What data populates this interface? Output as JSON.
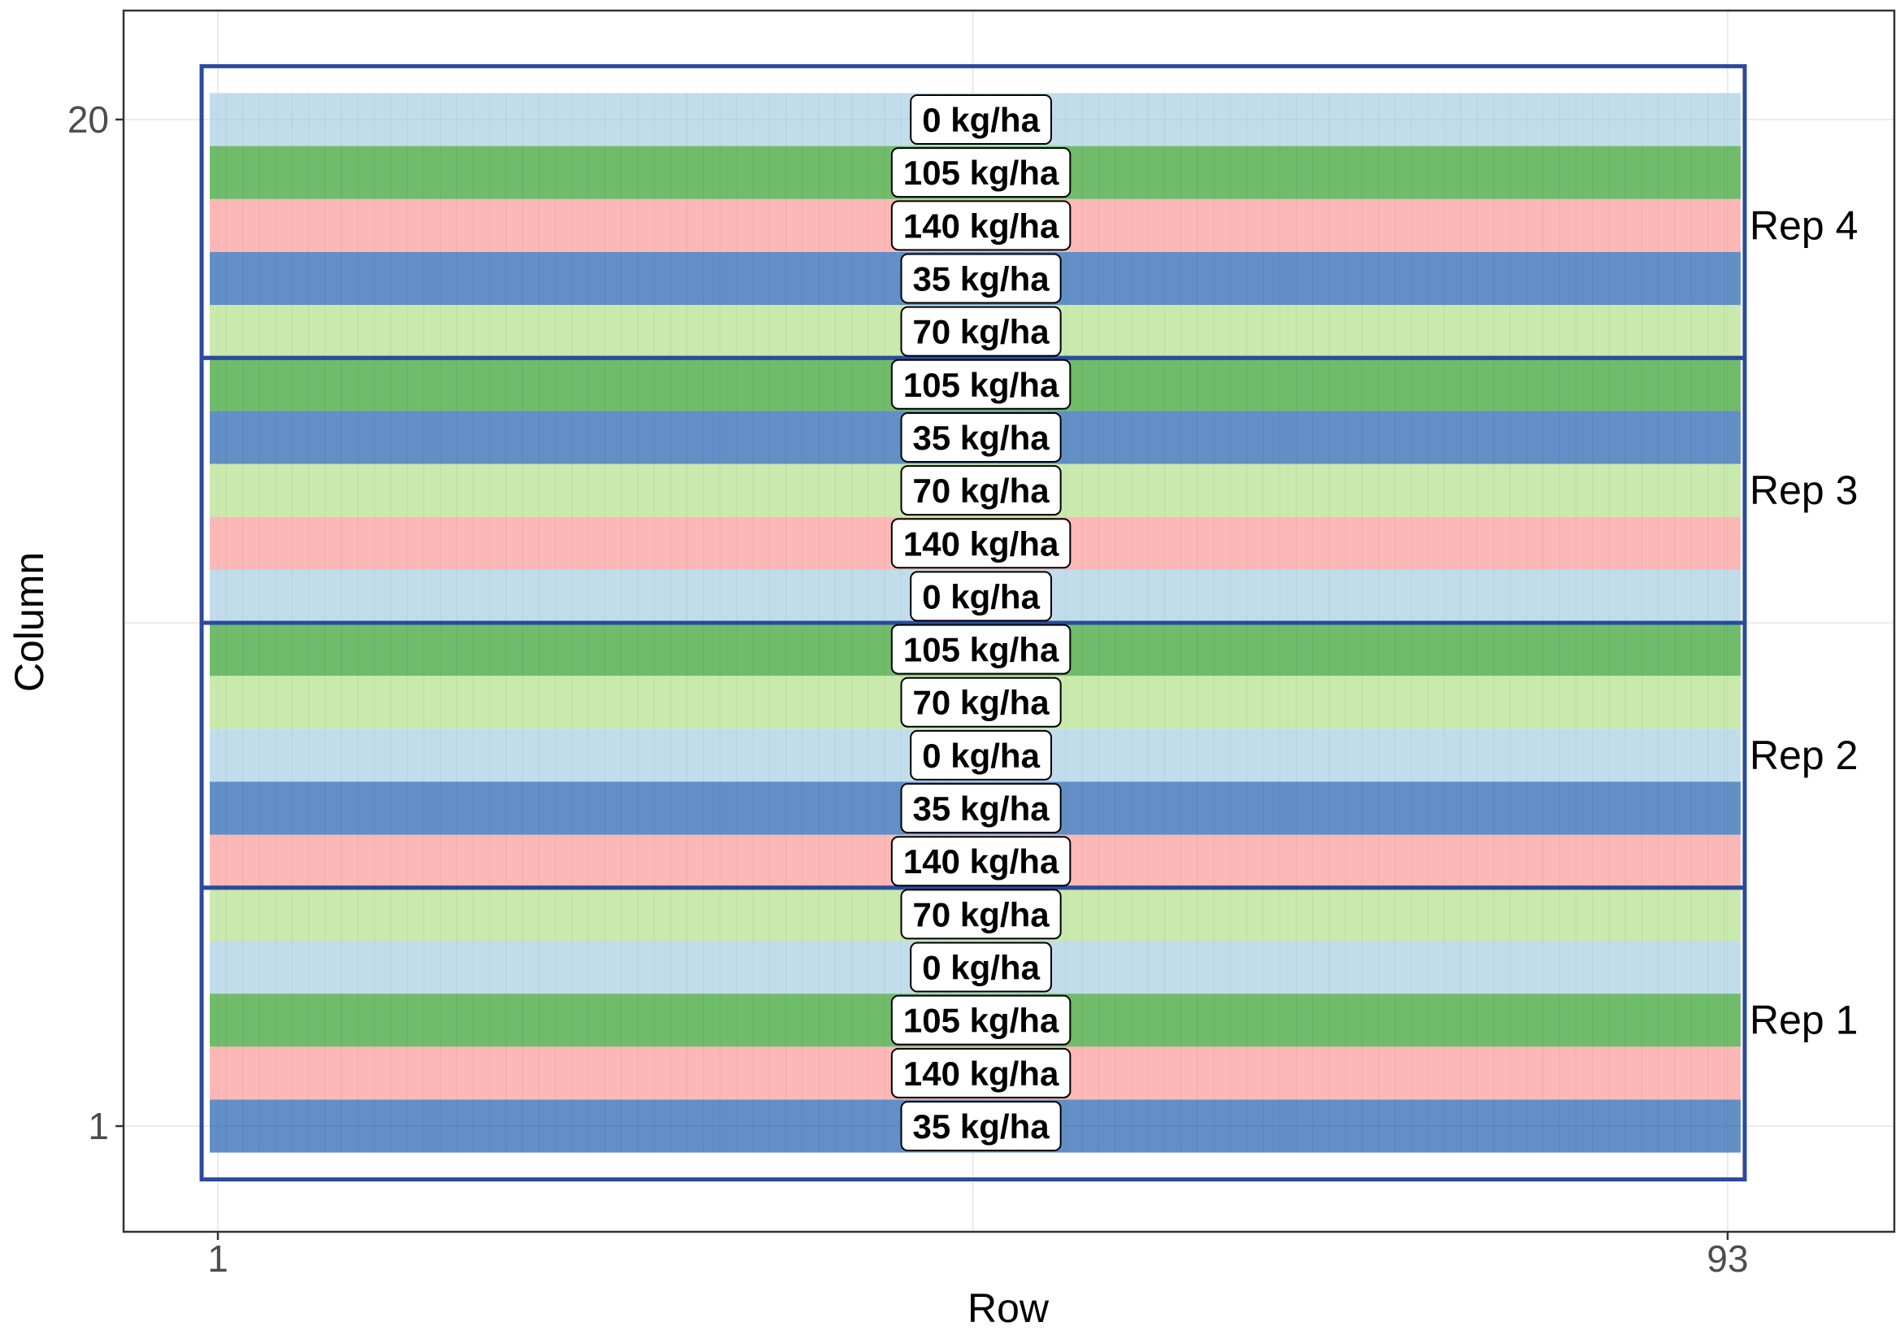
{
  "chart_data": {
    "type": "heatmap",
    "xlabel": "Row",
    "ylabel": "Column",
    "x_ticks": [
      "1",
      "93"
    ],
    "y_ticks": [
      "1",
      "20"
    ],
    "xlim": [
      1,
      93
    ],
    "ylim": [
      1,
      20
    ],
    "grid": true,
    "colors": {
      "0 kg/ha": "#a6cee3",
      "35 kg/ha": "#1f5fae",
      "70 kg/ha": "#b2df8a",
      "105 kg/ha": "#33a02c",
      "140 kg/ha": "#fb9a99",
      "rep_border": "#2b4a9c"
    },
    "columns": [
      {
        "column": 1,
        "rate": "35 kg/ha"
      },
      {
        "column": 2,
        "rate": "140 kg/ha"
      },
      {
        "column": 3,
        "rate": "105 kg/ha"
      },
      {
        "column": 4,
        "rate": "0 kg/ha"
      },
      {
        "column": 5,
        "rate": "70 kg/ha"
      },
      {
        "column": 6,
        "rate": "140 kg/ha"
      },
      {
        "column": 7,
        "rate": "35 kg/ha"
      },
      {
        "column": 8,
        "rate": "0 kg/ha"
      },
      {
        "column": 9,
        "rate": "70 kg/ha"
      },
      {
        "column": 10,
        "rate": "105 kg/ha"
      },
      {
        "column": 11,
        "rate": "0 kg/ha"
      },
      {
        "column": 12,
        "rate": "140 kg/ha"
      },
      {
        "column": 13,
        "rate": "70 kg/ha"
      },
      {
        "column": 14,
        "rate": "35 kg/ha"
      },
      {
        "column": 15,
        "rate": "105 kg/ha"
      },
      {
        "column": 16,
        "rate": "70 kg/ha"
      },
      {
        "column": 17,
        "rate": "35 kg/ha"
      },
      {
        "column": 18,
        "rate": "140 kg/ha"
      },
      {
        "column": 19,
        "rate": "105 kg/ha"
      },
      {
        "column": 20,
        "rate": "0 kg/ha"
      }
    ],
    "reps": [
      {
        "label": "Rep 1",
        "columns": [
          1,
          5
        ]
      },
      {
        "label": "Rep 2",
        "columns": [
          6,
          10
        ]
      },
      {
        "label": "Rep 3",
        "columns": [
          11,
          15
        ]
      },
      {
        "label": "Rep 4",
        "columns": [
          16,
          20
        ]
      }
    ]
  }
}
